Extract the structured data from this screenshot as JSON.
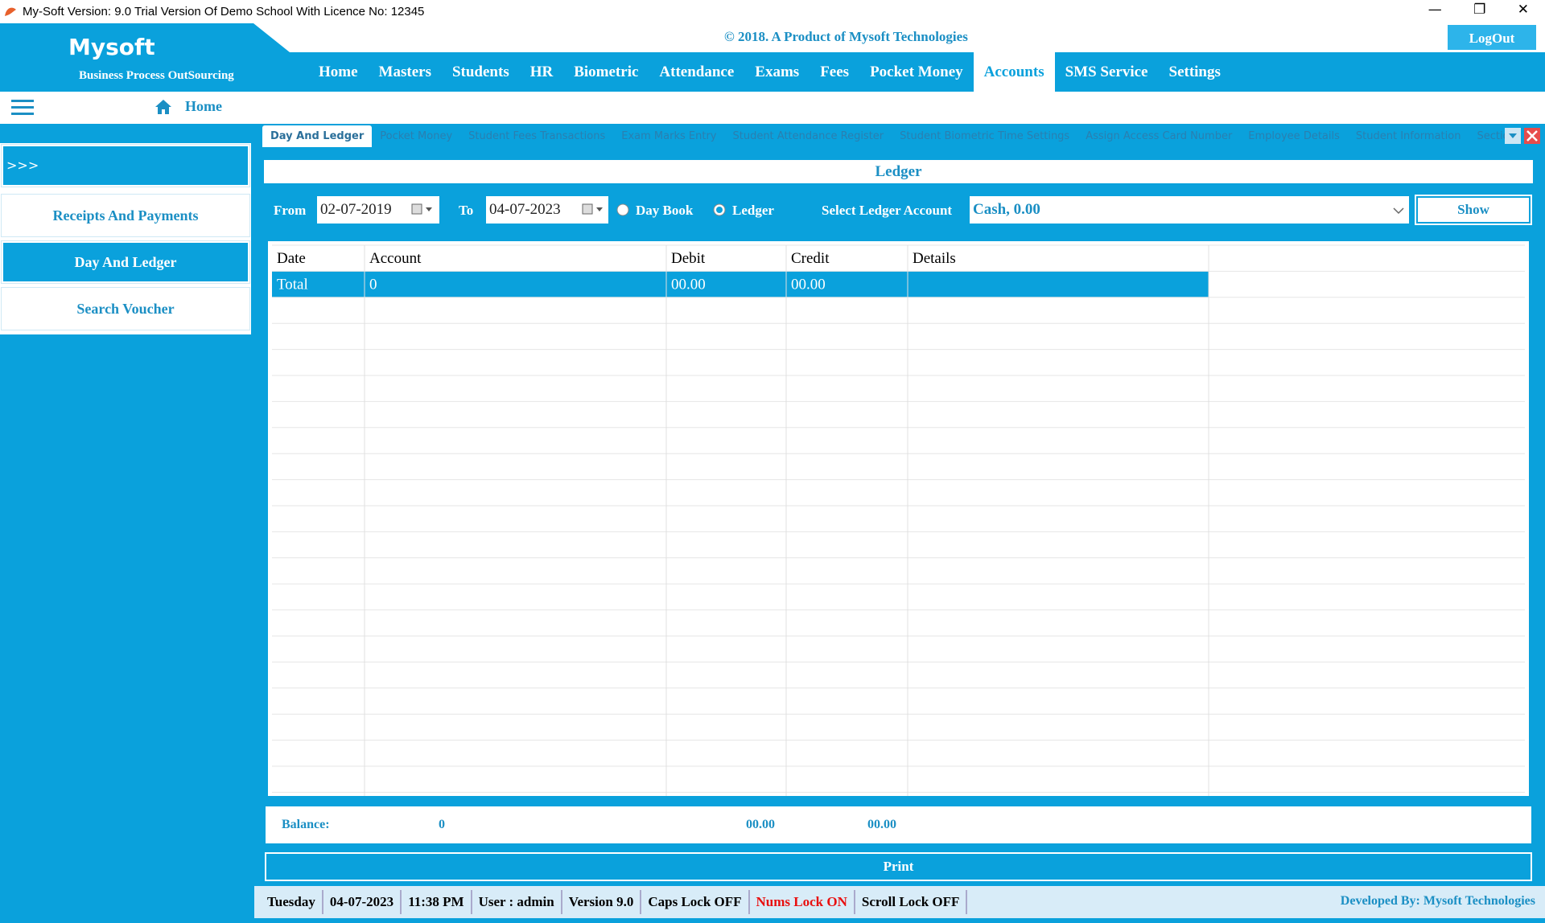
{
  "window": {
    "title": "My-Soft Version: 9.0 Trial Version Of Demo School With Licence No: 12345"
  },
  "header": {
    "brand": "Mysoft",
    "tagline": "Business Process OutSourcing",
    "copyright": "© 2018. A Product of Mysoft Technologies",
    "logout": "LogOut"
  },
  "nav": {
    "items": [
      "Home",
      "Masters",
      "Students",
      "HR",
      "Biometric",
      "Attendance",
      "Exams",
      "Fees",
      "Pocket Money",
      "Accounts",
      "SMS Service",
      "Settings"
    ]
  },
  "breadcrumb": {
    "label": "Home"
  },
  "tabs": [
    "Day And Ledger",
    "Pocket Money",
    "Student Fees Transactions",
    "Exam Marks Entry",
    "Student Attendance Register",
    "Student Biometric Time Settings",
    "Assign Access Card Number",
    "Employee Details",
    "Student Information",
    "Sections"
  ],
  "sidebar": {
    "toggle": ">>>",
    "items": [
      "Receipts And Payments",
      "Day And Ledger",
      "Search Voucher"
    ]
  },
  "ledger": {
    "title": "Ledger",
    "from_label": "From",
    "from_date": "02-07-2019",
    "to_label": "To",
    "to_date": "04-07-2023",
    "options": [
      "Day Book",
      "Ledger"
    ],
    "account_label": "Select Ledger Account",
    "account_value": "Cash, 0.00",
    "show": "Show"
  },
  "table": {
    "columns": [
      "Date",
      "Account",
      "Debit",
      "Credit",
      "Details"
    ],
    "rows": [
      [
        "Total",
        "0",
        "00.00",
        "00.00"
      ]
    ]
  },
  "balance": {
    "label": "Balance:",
    "values": [
      "0",
      "00.00",
      "00.00"
    ]
  },
  "print": "Print",
  "status": {
    "items": [
      "Tuesday",
      "04-07-2023",
      "11:38 PM",
      "User : admin",
      "Version 9.0",
      "Caps Lock OFF",
      "Nums Lock ON",
      "Scroll Lock OFF"
    ],
    "developer": "Developed By: Mysoft Technologies"
  }
}
